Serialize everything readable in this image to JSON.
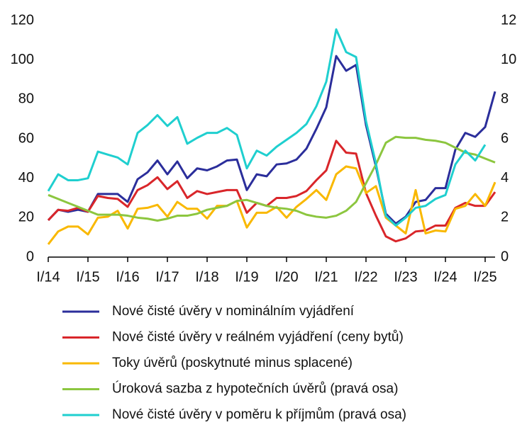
{
  "chart_data": {
    "type": "line",
    "categories": [
      "I/14",
      null,
      null,
      null,
      "I/15",
      null,
      null,
      null,
      "I/16",
      null,
      null,
      null,
      "I/17",
      null,
      null,
      null,
      "I/18",
      null,
      null,
      null,
      "I/19",
      null,
      null,
      null,
      "I/20",
      null,
      null,
      null,
      "I/21",
      null,
      null,
      null,
      "I/22",
      null,
      null,
      null,
      "I/23",
      null,
      null,
      null,
      "I/24",
      null,
      null,
      null,
      "I/25",
      null
    ],
    "ylim": [
      0,
      120
    ],
    "yticks": [
      0,
      20,
      40,
      60,
      80,
      100,
      120
    ],
    "y2lim": [
      0,
      12
    ],
    "y2ticks": [
      0,
      2,
      4,
      6,
      8,
      10,
      12
    ],
    "series": [
      {
        "name": "Nové čisté úvěry v nominálním vyjádření",
        "color": "#2b2e9b",
        "values": [
          18.7,
          24,
          23,
          24,
          23,
          32,
          32,
          32,
          28,
          39.5,
          43,
          49,
          42,
          48.5,
          40,
          45,
          44,
          46,
          49,
          49.5,
          34,
          42,
          41,
          47,
          47.5,
          49.5,
          55,
          65,
          76,
          102,
          94.5,
          97.5,
          67,
          46,
          22,
          17,
          20.5,
          28,
          29,
          35,
          35,
          54.5,
          63,
          61,
          66,
          84
        ]
      },
      {
        "name": "Nové čisté úvěry v reálném vyjádření (ceny bytů)",
        "color": "#d9262a",
        "values": [
          18.7,
          24,
          23.5,
          25,
          23,
          31,
          30,
          29.5,
          25.5,
          34,
          36.5,
          40.5,
          34.5,
          38.5,
          30,
          33.5,
          32,
          33,
          34,
          34,
          22.5,
          27.5,
          26,
          30,
          30,
          31,
          33.5,
          39,
          44,
          59,
          53,
          52.5,
          32.5,
          21,
          10.5,
          8,
          9.5,
          13,
          13.5,
          16,
          16,
          25,
          27.5,
          26,
          26,
          33
        ]
      },
      {
        "name": "Toky úvěrů (poskytnuté minus splacené)",
        "color": "#f9b800",
        "values": [
          6.5,
          13,
          15.5,
          15.5,
          11.5,
          20,
          20.5,
          23.5,
          14.5,
          24.5,
          25,
          26.5,
          20.5,
          28,
          24.5,
          24.5,
          19.5,
          26,
          26,
          28.5,
          15,
          22.5,
          22.5,
          25.5,
          20,
          25.5,
          29.5,
          34,
          29,
          42,
          46,
          45,
          32.5,
          36,
          20,
          16,
          12,
          34,
          12,
          13.5,
          13,
          24.5,
          26,
          32,
          26,
          38
        ]
      },
      {
        "name": "Úroková sazba z hypotečních úvěrů (pravá osa)",
        "color": "#8cc63f",
        "axis": "y2",
        "values": [
          3.15,
          2.95,
          2.75,
          2.55,
          2.35,
          2.15,
          2.15,
          2.15,
          2.1,
          2.0,
          1.95,
          1.85,
          1.95,
          2.1,
          2.1,
          2.2,
          2.4,
          2.5,
          2.6,
          2.85,
          2.9,
          2.75,
          2.6,
          2.5,
          2.45,
          2.35,
          2.15,
          2.05,
          2.0,
          2.1,
          2.35,
          2.8,
          3.75,
          4.7,
          5.8,
          6.1,
          6.05,
          6.05,
          5.95,
          5.9,
          5.8,
          5.55,
          5.3,
          5.2,
          5.0,
          4.8
        ]
      },
      {
        "name": "Nové čisté úvěry v poměru k příjmům (pravá osa)",
        "color": "#1fcfcf",
        "axis": "y2",
        "values": [
          3.35,
          4.2,
          3.9,
          3.9,
          4.0,
          5.35,
          5.2,
          5.05,
          4.7,
          6.3,
          6.7,
          7.2,
          6.65,
          7.1,
          5.75,
          6.05,
          6.3,
          6.3,
          6.55,
          6.2,
          4.5,
          5.4,
          5.15,
          5.6,
          5.95,
          6.3,
          6.75,
          7.65,
          8.9,
          11.55,
          10.4,
          10.15,
          6.9,
          4.75,
          2.1,
          1.6,
          2.0,
          2.5,
          2.6,
          2.95,
          3.15,
          4.7,
          5.4,
          4.9,
          5.7,
          null
        ]
      }
    ]
  }
}
